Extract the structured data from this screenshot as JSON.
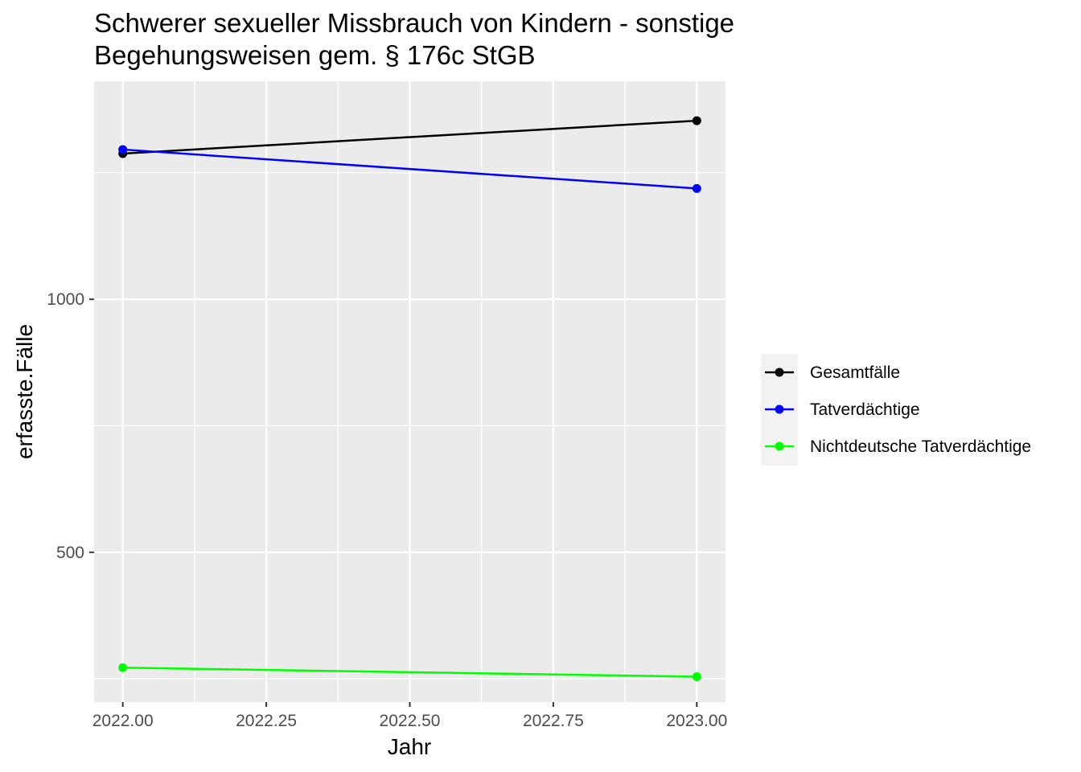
{
  "chart_data": {
    "type": "line",
    "title_lines": [
      "Schwerer sexueller Missbrauch von Kindern - sonstige",
      "Begehungsweisen gem. § 176c StGB"
    ],
    "xlabel": "Jahr",
    "ylabel": "erfasste.Fälle",
    "x": [
      2022,
      2023
    ],
    "x_ticks": [
      2022.0,
      2022.25,
      2022.5,
      2022.75,
      2023.0
    ],
    "x_tick_labels": [
      "2022.00",
      "2022.25",
      "2022.50",
      "2022.75",
      "2023.00"
    ],
    "y_ticks": [
      500,
      1000
    ],
    "y_tick_labels": [
      "500",
      "1000"
    ],
    "xlim": [
      1.95,
      2023.05
    ],
    "ylim": [
      204,
      1431
    ],
    "grid": true,
    "legend_position": "right",
    "series": [
      {
        "name": "Gesamtfälle",
        "color": "#000000",
        "values": [
          1288,
          1353
        ]
      },
      {
        "name": "Tatverdächtige",
        "color": "#0000ff",
        "values": [
          1296,
          1219
        ]
      },
      {
        "name": "Nichtdeutsche Tatverdächtige",
        "color": "#00ff00",
        "values": [
          272,
          254
        ]
      }
    ]
  }
}
